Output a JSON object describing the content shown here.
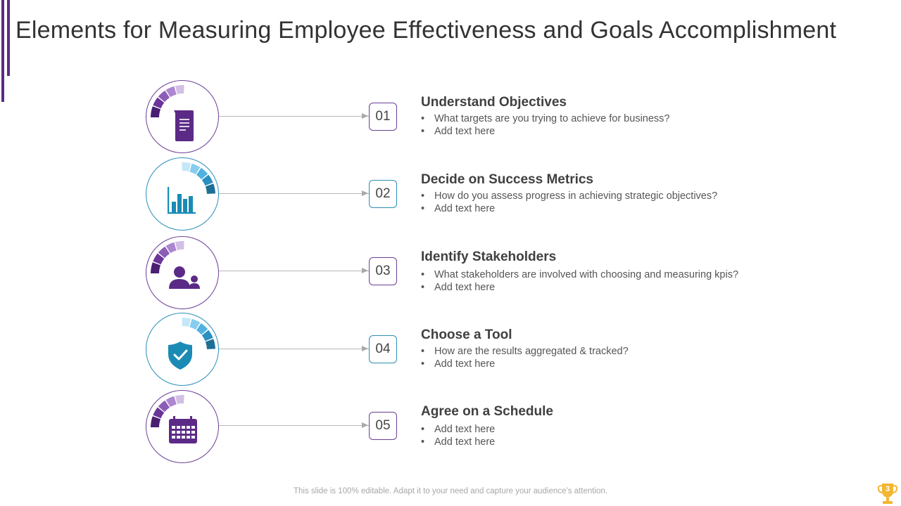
{
  "slide": {
    "title": "Elements for Measuring Employee Effectiveness and Goals Accomplishment",
    "footer_note": "This slide is 100% editable. Adapt it to your need and capture your audience’s attention.",
    "page_number": "3"
  },
  "colors": {
    "purple": "#5b2a86",
    "purple_dark": "#4a1f72",
    "teal": "#1a8bb5",
    "teal_dark": "#1e6f95",
    "accent_bar": "#5b2a86",
    "trophy": "#f2b632"
  },
  "steps": [
    {
      "number": "01",
      "title": "Understand Objectives",
      "bullets": [
        "What targets are you trying to achieve for business?",
        "Add text here"
      ],
      "icon": "document-icon",
      "theme": "purple"
    },
    {
      "number": "02",
      "title": "Decide on Success Metrics",
      "bullets": [
        "How do you assess progress in achieving strategic objectives?",
        "Add text here"
      ],
      "icon": "bar-chart-icon",
      "theme": "teal"
    },
    {
      "number": "03",
      "title": "Identify Stakeholders",
      "bullets": [
        "What stakeholders are involved with choosing and measuring kpis?",
        "Add text here"
      ],
      "icon": "people-icon",
      "theme": "purple"
    },
    {
      "number": "04",
      "title": "Choose a Tool",
      "bullets": [
        "How are the results aggregated & tracked?",
        "Add text here"
      ],
      "icon": "shield-check-icon",
      "theme": "teal"
    },
    {
      "number": "05",
      "title": "Agree on a Schedule",
      "bullets": [
        "Add text here",
        "Add text here"
      ],
      "icon": "calendar-icon",
      "theme": "purple"
    }
  ]
}
